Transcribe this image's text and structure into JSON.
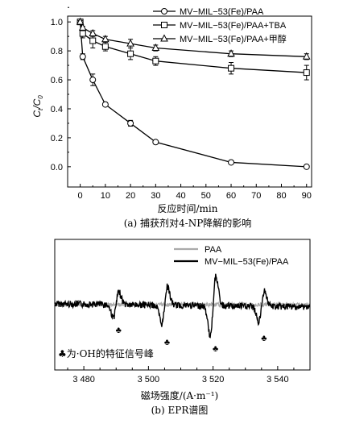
{
  "chart_data": [
    {
      "type": "line",
      "xlabel": "反应时间/min",
      "ylabel": "C/C0",
      "ylabel_main": "C",
      "ylabel_sub1": "t",
      "ylabel_mid": "/C",
      "ylabel_sub2": "0",
      "caption": "(a) 捕获剂对4-NP降解的影响",
      "xlim": [
        -5,
        92
      ],
      "ylim": [
        -0.14,
        1.04
      ],
      "xticks": [
        0,
        10,
        20,
        30,
        40,
        50,
        60,
        70,
        80,
        90
      ],
      "yticks": [
        0.0,
        0.2,
        0.4,
        0.6,
        0.8,
        1.0
      ],
      "ytick_labels": [
        "0.0",
        "0.2",
        "0.4",
        "0.6",
        "0.8",
        "1.0"
      ],
      "legend_position": "top-right",
      "series": [
        {
          "name": "MV−MIL−53(Fe)/PAA",
          "marker": "circle",
          "x": [
            0,
            1,
            5,
            10,
            20,
            30,
            60,
            90
          ],
          "y": [
            1.0,
            0.76,
            0.6,
            0.43,
            0.3,
            0.17,
            0.03,
            0.0
          ],
          "err": [
            0.01,
            0.02,
            0.04,
            0.01,
            0.02,
            0.01,
            0.01,
            0.01
          ]
        },
        {
          "name": "MV−MIL−53(Fe)/PAA+TBA",
          "marker": "square",
          "x": [
            0,
            1,
            5,
            10,
            20,
            30,
            60,
            90
          ],
          "y": [
            1.0,
            0.92,
            0.87,
            0.83,
            0.78,
            0.73,
            0.68,
            0.65
          ],
          "err": [
            0.01,
            0.03,
            0.05,
            0.03,
            0.04,
            0.03,
            0.04,
            0.05
          ]
        },
        {
          "name": "MV−MIL−53(Fe)/PAA+甲醇",
          "marker": "triangle",
          "x": [
            0,
            1,
            5,
            10,
            20,
            30,
            60,
            90
          ],
          "y": [
            1.0,
            0.96,
            0.92,
            0.88,
            0.85,
            0.82,
            0.78,
            0.76
          ],
          "err": [
            0.01,
            0.01,
            0.02,
            0.02,
            0.03,
            0.02,
            0.02,
            0.02
          ]
        }
      ]
    },
    {
      "type": "line",
      "xlabel": "磁场强度/(A·m⁻¹)",
      "caption": "(b) EPR谱图",
      "xlim": [
        3471,
        3550
      ],
      "xticks": [
        3480,
        3500,
        3520,
        3540
      ],
      "xtick_labels": [
        "3 480",
        "3 500",
        "3 520",
        "3 540"
      ],
      "legend_position": "top-right",
      "series": [
        {
          "name": "PAA",
          "color": "#aaaaaa"
        },
        {
          "name": "MV−MIL−53(Fe)/PAA",
          "color": "#000000"
        }
      ],
      "peak_positions": [
        3490,
        3505,
        3520,
        3535
      ],
      "peak_marker": "♣",
      "annotation": "♣为·OH的特征信号峰"
    }
  ]
}
